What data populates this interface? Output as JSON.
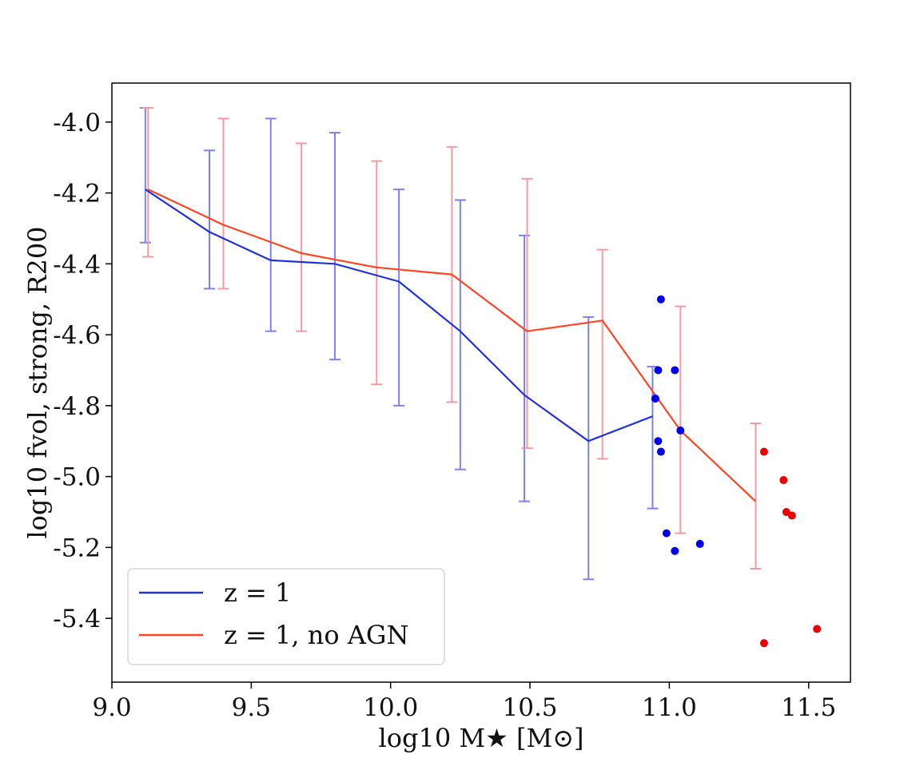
{
  "chart_data": {
    "type": "line",
    "xlabel": "log10 M★ [M⊙]",
    "ylabel": "log10 fvol, strong, R200",
    "xlim": [
      9.0,
      11.65
    ],
    "ylim": [
      -5.58,
      -3.89
    ],
    "xticks": [
      "9.0",
      "9.5",
      "10.0",
      "10.5",
      "11.0",
      "11.5"
    ],
    "xtick_values": [
      9.0,
      9.5,
      10.0,
      10.5,
      11.0,
      11.5
    ],
    "yticks": [
      "-4.0",
      "-4.2",
      "-4.4",
      "-4.6",
      "-4.8",
      "-5.0",
      "-5.2",
      "-5.4"
    ],
    "ytick_values": [
      -4.0,
      -4.2,
      -4.4,
      -4.6,
      -4.8,
      -5.0,
      -5.2,
      -5.4
    ],
    "legend_position": "lower-left",
    "series": [
      {
        "name": "z = 1",
        "color": "#2233dd",
        "errcolor": "#7c82f0",
        "x": [
          9.12,
          9.35,
          9.57,
          9.8,
          10.03,
          10.25,
          10.48,
          10.71,
          10.94
        ],
        "y": [
          -4.19,
          -4.31,
          -4.39,
          -4.4,
          -4.45,
          -4.59,
          -4.77,
          -4.9,
          -4.83
        ],
        "yerr_low": [
          -4.34,
          -4.47,
          -4.59,
          -4.67,
          -4.8,
          -4.98,
          -5.07,
          -5.29,
          -5.09
        ],
        "yerr_high": [
          -3.96,
          -4.08,
          -3.99,
          -4.03,
          -4.19,
          -4.22,
          -4.32,
          -4.55,
          -4.69
        ]
      },
      {
        "name": "z = 1, no AGN",
        "color": "#ff4422",
        "errcolor": "#f59aa2",
        "x": [
          9.13,
          9.4,
          9.68,
          9.95,
          10.22,
          10.49,
          10.76,
          11.04,
          11.31
        ],
        "y": [
          -4.19,
          -4.29,
          -4.37,
          -4.41,
          -4.43,
          -4.59,
          -4.56,
          -4.87,
          -5.07
        ],
        "yerr_low": [
          -4.38,
          -4.47,
          -4.59,
          -4.74,
          -4.79,
          -4.92,
          -4.95,
          -5.16,
          -5.26
        ],
        "yerr_high": [
          -3.96,
          -3.99,
          -4.06,
          -4.11,
          -4.07,
          -4.16,
          -4.36,
          -4.52,
          -4.85
        ]
      }
    ],
    "scatter": [
      {
        "color": "#0000ee",
        "x": [
          10.97,
          10.96,
          11.02,
          10.95,
          10.95,
          10.97,
          10.96,
          11.04,
          10.99,
          11.02,
          11.11
        ],
        "y": [
          -4.5,
          -4.7,
          -4.7,
          -4.78,
          -4.78,
          -4.93,
          -4.9,
          -4.87,
          -5.16,
          -5.21,
          -5.19
        ]
      },
      {
        "color": "#ee0000",
        "x": [
          11.34,
          11.41,
          11.42,
          11.44,
          11.34,
          11.53
        ],
        "y": [
          -4.93,
          -5.01,
          -5.1,
          -5.11,
          -5.47,
          -5.43
        ]
      }
    ]
  }
}
